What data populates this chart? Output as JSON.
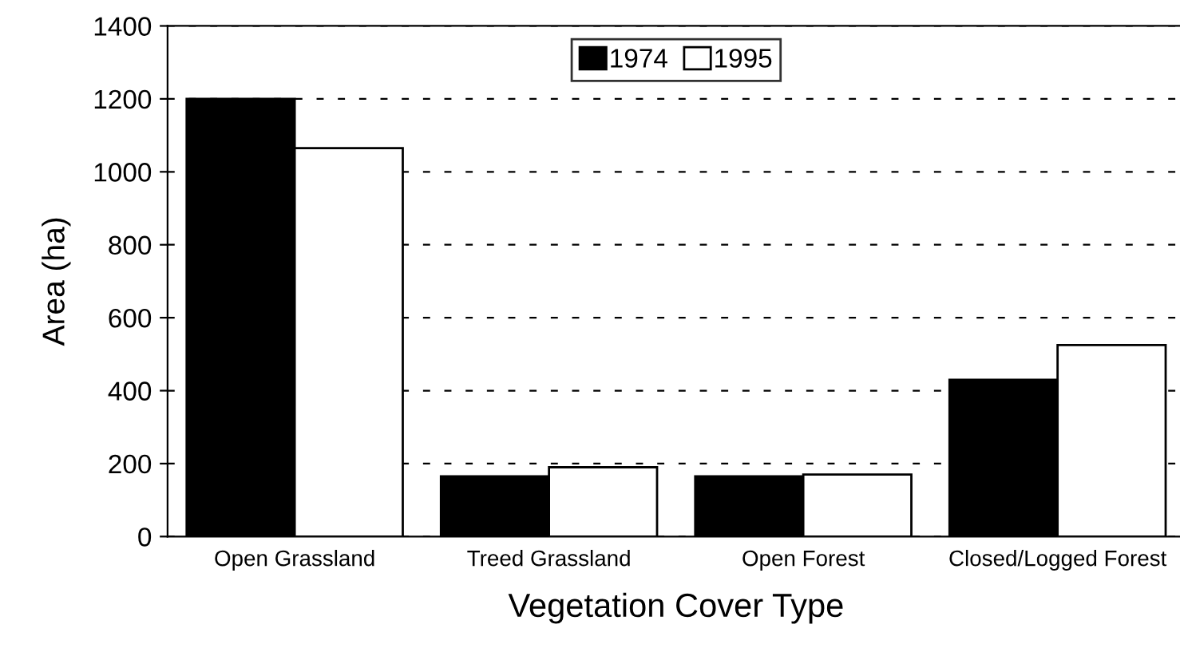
{
  "chart_data": {
    "type": "bar",
    "xlabel": "Vegetation Cover Type",
    "ylabel": "Area (ha)",
    "categories": [
      "Open Grassland",
      "Treed Grassland",
      "Open Forest",
      "Closed/Logged Forest"
    ],
    "series": [
      {
        "name": "1974",
        "color": "#000000",
        "values": [
          1200,
          165,
          165,
          430
        ]
      },
      {
        "name": "1995",
        "color": "#ffffff",
        "values": [
          1065,
          190,
          170,
          525
        ]
      }
    ],
    "ylim": [
      0,
      1400
    ],
    "yticks": [
      0,
      200,
      400,
      600,
      800,
      1000,
      1200,
      1400
    ],
    "grid": "y",
    "legend": "top"
  }
}
